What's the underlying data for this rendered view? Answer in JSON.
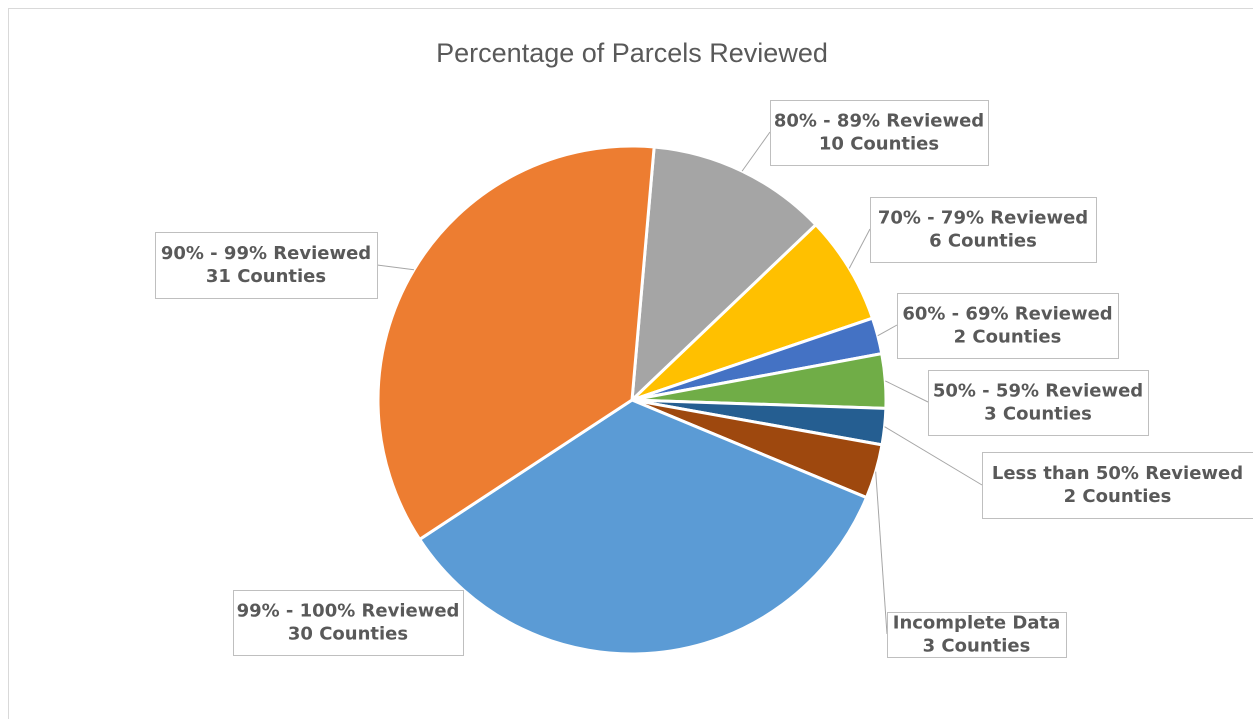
{
  "chart_data": {
    "type": "pie",
    "title": "Percentage of Parcels Reviewed",
    "categories": [
      "80% - 89% Reviewed",
      "70% - 79% Reviewed",
      "60% - 69% Reviewed",
      "50% - 59% Reviewed",
      "Less than 50% Reviewed",
      "Incomplete Data",
      "99% - 100% Reviewed",
      "90% - 99% Reviewed"
    ],
    "values": [
      10,
      6,
      2,
      3,
      2,
      3,
      30,
      31
    ],
    "value_labels": [
      "10 Counties",
      "6 Counties",
      "2 Counties",
      "3 Counties",
      "2 Counties",
      "3 Counties",
      "30 Counties",
      "31 Counties"
    ],
    "colors": [
      "#a5a5a5",
      "#ffc000",
      "#4472c4",
      "#70ad47",
      "#255e91",
      "#9e480e",
      "#5b9bd5",
      "#ed7d31"
    ]
  }
}
